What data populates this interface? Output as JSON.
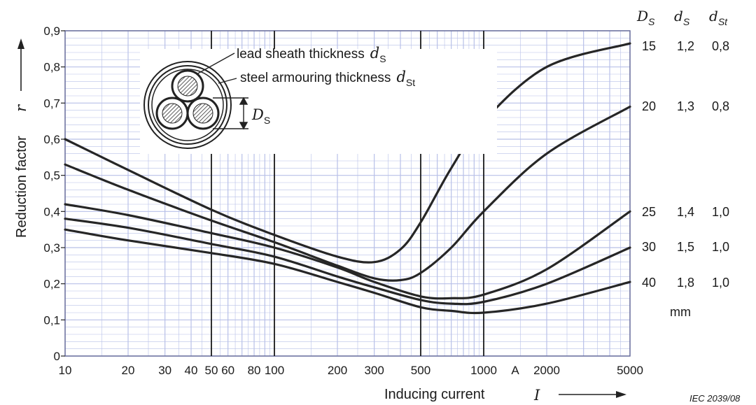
{
  "chart_data": {
    "type": "line",
    "title": "",
    "xlabel": "Inducing current",
    "xlabel_symbol": "I",
    "ylabel": "Reduction factor",
    "ylabel_symbol": "r",
    "x_scale": "log",
    "xlim": [
      10,
      5000
    ],
    "ylim": [
      0,
      0.9
    ],
    "x_ticks": [
      {
        "v": 10,
        "label": "10"
      },
      {
        "v": 20,
        "label": "20"
      },
      {
        "v": 30,
        "label": "30"
      },
      {
        "v": 40,
        "label": "40"
      },
      {
        "v": 50,
        "label": "50"
      },
      {
        "v": 60,
        "label": "60"
      },
      {
        "v": 80,
        "label": "80"
      },
      {
        "v": 100,
        "label": "100"
      },
      {
        "v": 200,
        "label": "200"
      },
      {
        "v": 300,
        "label": "300"
      },
      {
        "v": 500,
        "label": "500"
      },
      {
        "v": 1000,
        "label": "1000"
      },
      {
        "v": 1414,
        "label": "A"
      },
      {
        "v": 2000,
        "label": "2000"
      },
      {
        "v": 5000,
        "label": "5000"
      }
    ],
    "y_ticks": [
      {
        "v": 0,
        "label": "0"
      },
      {
        "v": 0.1,
        "label": "0,1"
      },
      {
        "v": 0.2,
        "label": "0,2"
      },
      {
        "v": 0.3,
        "label": "0,3"
      },
      {
        "v": 0.4,
        "label": "0,4"
      },
      {
        "v": 0.5,
        "label": "0,5"
      },
      {
        "v": 0.6,
        "label": "0,6"
      },
      {
        "v": 0.7,
        "label": "0,7"
      },
      {
        "v": 0.8,
        "label": "0,8"
      },
      {
        "v": 0.9,
        "label": "0,9"
      }
    ],
    "vertical_lines": [
      50,
      100,
      500,
      1000
    ],
    "grid": true,
    "legend_header": {
      "d_S_main": "D",
      "d_S_sub": "S",
      "ds_main": "d",
      "ds_sub": "S",
      "dst_main": "d",
      "dst_sub": "St"
    },
    "legend_unit": "mm",
    "series": [
      {
        "Ds": "15",
        "ds": "1,2",
        "dst": "0,8",
        "x": [
          10,
          20,
          50,
          100,
          200,
          300,
          400,
          500,
          700,
          1000,
          2000,
          5000
        ],
        "y": [
          0.6,
          0.515,
          0.405,
          0.335,
          0.275,
          0.26,
          0.295,
          0.37,
          0.52,
          0.65,
          0.8,
          0.865
        ]
      },
      {
        "Ds": "20",
        "ds": "1,3",
        "dst": "0,8",
        "x": [
          10,
          20,
          50,
          100,
          200,
          300,
          400,
          500,
          700,
          1000,
          2000,
          5000
        ],
        "y": [
          0.53,
          0.46,
          0.375,
          0.315,
          0.25,
          0.215,
          0.21,
          0.23,
          0.3,
          0.4,
          0.56,
          0.69
        ]
      },
      {
        "Ds": "25",
        "ds": "1,4",
        "dst": "1,0",
        "x": [
          10,
          20,
          50,
          100,
          200,
          300,
          500,
          700,
          1000,
          2000,
          5000
        ],
        "y": [
          0.42,
          0.39,
          0.34,
          0.3,
          0.245,
          0.205,
          0.165,
          0.16,
          0.17,
          0.24,
          0.4
        ]
      },
      {
        "Ds": "30",
        "ds": "1,5",
        "dst": "1,0",
        "x": [
          10,
          20,
          50,
          100,
          200,
          300,
          500,
          700,
          1000,
          2000,
          5000
        ],
        "y": [
          0.38,
          0.355,
          0.31,
          0.275,
          0.22,
          0.19,
          0.155,
          0.145,
          0.15,
          0.2,
          0.3
        ]
      },
      {
        "Ds": "40",
        "ds": "1,8",
        "dst": "1,0",
        "x": [
          10,
          20,
          50,
          100,
          200,
          300,
          500,
          700,
          1000,
          2000,
          5000
        ],
        "y": [
          0.35,
          0.32,
          0.285,
          0.255,
          0.205,
          0.175,
          0.135,
          0.125,
          0.12,
          0.145,
          0.205
        ]
      }
    ],
    "inset": {
      "lead_label": "lead sheath thickness",
      "lead_symbol_main": "d",
      "lead_symbol_sub": "S",
      "steel_label": "steel armouring thickness",
      "steel_symbol_main": "d",
      "steel_symbol_sub": "St",
      "dim_symbol_main": "D",
      "dim_symbol_sub": "S"
    },
    "colors": {
      "grid": "#b8c0e8",
      "curve": "#262626",
      "frame": "#6a6f9c"
    }
  },
  "footer": "IEC   2039/08"
}
